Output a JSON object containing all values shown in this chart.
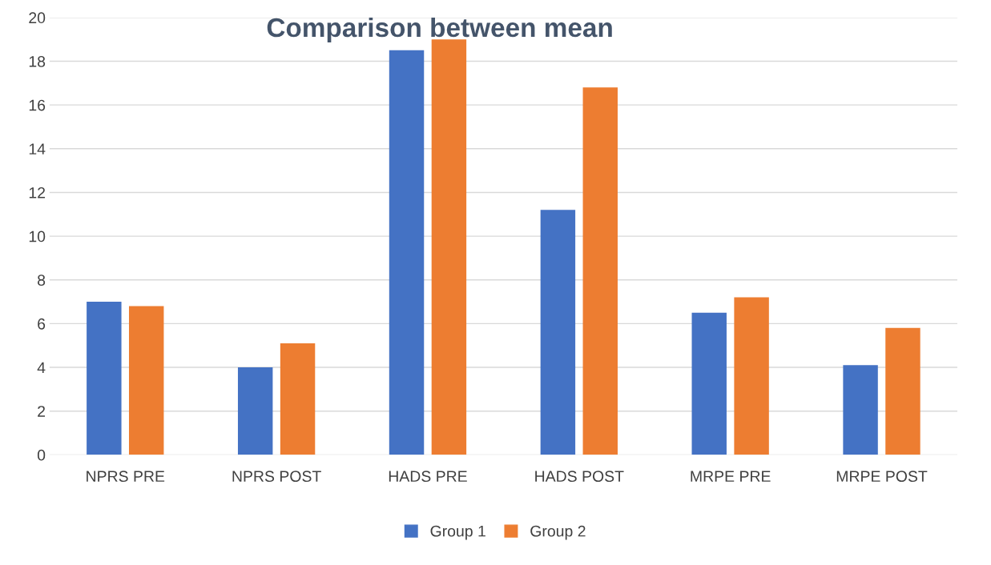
{
  "chart_data": {
    "type": "bar",
    "title": "Comparison between mean",
    "categories": [
      "NPRS PRE",
      "NPRS POST",
      "HADS PRE",
      "HADS POST",
      "MRPE PRE",
      "MRPE POST"
    ],
    "series": [
      {
        "name": "Group 1",
        "color": "#4472c4",
        "values": [
          7.0,
          4.0,
          18.5,
          11.2,
          6.5,
          4.1
        ]
      },
      {
        "name": "Group 2",
        "color": "#ed7d31",
        "values": [
          6.8,
          5.1,
          19.0,
          16.8,
          7.2,
          5.8
        ]
      }
    ],
    "ylim": [
      0,
      20
    ],
    "yticks": [
      0,
      2,
      4,
      6,
      8,
      10,
      12,
      14,
      16,
      18,
      20
    ],
    "grid": "y",
    "legend": "bottom"
  }
}
